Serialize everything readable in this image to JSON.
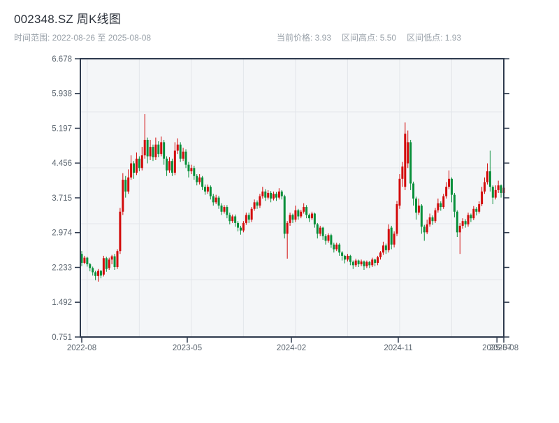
{
  "header": {
    "title": "002348.SZ 周K线图",
    "subtitle": "时间范围: 2022-08-26 至 2025-08-08",
    "stats": [
      {
        "text": "当前价格: 3.93"
      },
      {
        "text": "区间高点: 5.50"
      },
      {
        "text": "区间低点: 1.93"
      }
    ]
  },
  "chart_data": {
    "type": "candlestick",
    "title": "002348.SZ 周K线图",
    "symbol": "002348.SZ",
    "freq": "weekly",
    "start_date": "2022-08-26",
    "end_date": "2025-08-08",
    "current_price": 3.93,
    "range_high": 5.5,
    "range_low": 1.93,
    "ylim": [
      0.751,
      6.678
    ],
    "grid": true,
    "colors": {
      "up": "#d20a0a",
      "down": "#088f3a",
      "axis": "#2e3a4d",
      "grid": "#e3e6ea",
      "plot_bg": "#f4f6f8",
      "tick_text": "#5c6670"
    },
    "y_ticks": [
      "6.678",
      "5.938",
      "5.197",
      "4.456",
      "3.715",
      "2.974",
      "2.233",
      "1.492",
      "0.751"
    ],
    "x_ticks": [
      {
        "label": "2022-08",
        "index": 0
      },
      {
        "label": "2023-05",
        "index": 38.5
      },
      {
        "label": "2024-02",
        "index": 76.5
      },
      {
        "label": "2024-11",
        "index": 115.5
      },
      {
        "label": "2025-07",
        "index": 151.5
      },
      {
        "label": "2025-08",
        "index": 154
      }
    ],
    "candles": [
      [
        2.52,
        2.58,
        2.26,
        2.33
      ],
      [
        2.33,
        2.48,
        2.3,
        2.44
      ],
      [
        2.44,
        2.46,
        2.25,
        2.3
      ],
      [
        2.3,
        2.33,
        2.15,
        2.22
      ],
      [
        2.22,
        2.25,
        2.06,
        2.13
      ],
      [
        2.13,
        2.16,
        1.96,
        2.05
      ],
      [
        2.05,
        2.2,
        1.93,
        2.16
      ],
      [
        2.16,
        2.18,
        2.0,
        2.06
      ],
      [
        2.08,
        2.48,
        2.04,
        2.43
      ],
      [
        2.43,
        2.46,
        2.14,
        2.2
      ],
      [
        2.22,
        2.44,
        2.18,
        2.4
      ],
      [
        2.4,
        2.5,
        2.3,
        2.47
      ],
      [
        2.47,
        2.52,
        2.18,
        2.24
      ],
      [
        2.24,
        2.62,
        2.2,
        2.58
      ],
      [
        2.58,
        3.5,
        2.52,
        3.42
      ],
      [
        3.42,
        4.24,
        3.35,
        4.1
      ],
      [
        4.1,
        4.18,
        3.72,
        3.85
      ],
      [
        3.85,
        4.32,
        3.8,
        4.15
      ],
      [
        4.15,
        4.62,
        4.1,
        4.45
      ],
      [
        4.45,
        4.5,
        4.12,
        4.25
      ],
      [
        4.25,
        4.68,
        4.2,
        4.55
      ],
      [
        4.55,
        4.6,
        4.28,
        4.35
      ],
      [
        4.35,
        4.8,
        4.3,
        4.62
      ],
      [
        4.62,
        5.5,
        4.55,
        4.95
      ],
      [
        4.95,
        5.0,
        4.45,
        4.6
      ],
      [
        4.6,
        4.95,
        4.52,
        4.8
      ],
      [
        4.8,
        4.85,
        4.5,
        4.58
      ],
      [
        4.58,
        5.0,
        4.52,
        4.85
      ],
      [
        4.85,
        4.92,
        4.58,
        4.65
      ],
      [
        4.65,
        5.02,
        4.6,
        4.9
      ],
      [
        4.9,
        4.95,
        4.42,
        4.55
      ],
      [
        4.55,
        4.6,
        4.18,
        4.3
      ],
      [
        4.3,
        4.58,
        4.25,
        4.5
      ],
      [
        4.5,
        4.55,
        4.18,
        4.25
      ],
      [
        4.25,
        4.9,
        4.2,
        4.72
      ],
      [
        4.72,
        4.98,
        4.65,
        4.85
      ],
      [
        4.85,
        4.9,
        4.48,
        4.55
      ],
      [
        4.55,
        4.78,
        4.5,
        4.7
      ],
      [
        4.7,
        4.75,
        4.35,
        4.42
      ],
      [
        4.42,
        4.48,
        4.15,
        4.28
      ],
      [
        4.28,
        4.42,
        4.22,
        4.35
      ],
      [
        4.35,
        4.4,
        4.1,
        4.18
      ],
      [
        4.18,
        4.22,
        3.98,
        4.05
      ],
      [
        4.05,
        4.22,
        4.0,
        4.15
      ],
      [
        4.15,
        4.18,
        3.88,
        3.95
      ],
      [
        3.95,
        4.0,
        3.78,
        3.85
      ],
      [
        3.85,
        4.0,
        3.8,
        3.95
      ],
      [
        3.95,
        3.98,
        3.68,
        3.75
      ],
      [
        3.75,
        3.8,
        3.55,
        3.62
      ],
      [
        3.62,
        3.78,
        3.58,
        3.72
      ],
      [
        3.72,
        3.76,
        3.48,
        3.55
      ],
      [
        3.55,
        3.6,
        3.35,
        3.42
      ],
      [
        3.42,
        3.56,
        3.38,
        3.52
      ],
      [
        3.52,
        3.56,
        3.28,
        3.35
      ],
      [
        3.35,
        3.4,
        3.15,
        3.22
      ],
      [
        3.22,
        3.36,
        3.18,
        3.32
      ],
      [
        3.32,
        3.36,
        3.1,
        3.18
      ],
      [
        3.18,
        3.22,
        3.0,
        3.08
      ],
      [
        3.08,
        3.12,
        2.93,
        3.02
      ],
      [
        3.02,
        3.22,
        2.98,
        3.18
      ],
      [
        3.18,
        3.4,
        3.14,
        3.35
      ],
      [
        3.35,
        3.4,
        3.18,
        3.25
      ],
      [
        3.25,
        3.52,
        3.2,
        3.48
      ],
      [
        3.48,
        3.68,
        3.44,
        3.62
      ],
      [
        3.62,
        3.66,
        3.48,
        3.55
      ],
      [
        3.55,
        3.8,
        3.5,
        3.75
      ],
      [
        3.75,
        3.95,
        3.7,
        3.85
      ],
      [
        3.85,
        3.9,
        3.65,
        3.72
      ],
      [
        3.72,
        3.88,
        3.68,
        3.82
      ],
      [
        3.82,
        3.86,
        3.62,
        3.7
      ],
      [
        3.7,
        3.85,
        3.66,
        3.8
      ],
      [
        3.8,
        3.84,
        3.65,
        3.72
      ],
      [
        3.72,
        3.92,
        3.68,
        3.85
      ],
      [
        3.85,
        3.88,
        3.68,
        3.75
      ],
      [
        3.75,
        3.78,
        2.85,
        2.95
      ],
      [
        2.95,
        3.22,
        2.42,
        3.18
      ],
      [
        3.18,
        3.4,
        3.12,
        3.35
      ],
      [
        3.35,
        3.38,
        3.18,
        3.25
      ],
      [
        3.25,
        3.55,
        3.2,
        3.45
      ],
      [
        3.45,
        3.48,
        3.25,
        3.32
      ],
      [
        3.32,
        3.46,
        3.28,
        3.42
      ],
      [
        3.42,
        3.6,
        3.38,
        3.52
      ],
      [
        3.52,
        3.56,
        3.28,
        3.35
      ],
      [
        3.35,
        3.38,
        3.2,
        3.28
      ],
      [
        3.28,
        3.42,
        3.24,
        3.38
      ],
      [
        3.38,
        3.4,
        3.08,
        3.15
      ],
      [
        3.15,
        3.18,
        2.85,
        2.95
      ],
      [
        2.95,
        3.12,
        2.9,
        3.08
      ],
      [
        3.08,
        3.1,
        2.82,
        2.9
      ],
      [
        2.9,
        2.94,
        2.72,
        2.8
      ],
      [
        2.8,
        2.96,
        2.76,
        2.92
      ],
      [
        2.92,
        2.95,
        2.65,
        2.72
      ],
      [
        2.72,
        2.76,
        2.55,
        2.62
      ],
      [
        2.62,
        2.76,
        2.58,
        2.72
      ],
      [
        2.72,
        2.75,
        2.48,
        2.55
      ],
      [
        2.55,
        2.58,
        2.38,
        2.48
      ],
      [
        2.48,
        2.5,
        2.32,
        2.4
      ],
      [
        2.4,
        2.52,
        2.36,
        2.48
      ],
      [
        2.48,
        2.5,
        2.28,
        2.35
      ],
      [
        2.35,
        2.38,
        2.2,
        2.28
      ],
      [
        2.28,
        2.42,
        2.24,
        2.38
      ],
      [
        2.38,
        2.4,
        2.24,
        2.3
      ],
      [
        2.3,
        2.4,
        2.26,
        2.36
      ],
      [
        2.36,
        2.38,
        2.18,
        2.26
      ],
      [
        2.26,
        2.38,
        2.22,
        2.35
      ],
      [
        2.35,
        2.37,
        2.22,
        2.28
      ],
      [
        2.28,
        2.44,
        2.24,
        2.4
      ],
      [
        2.4,
        2.42,
        2.26,
        2.33
      ],
      [
        2.33,
        2.48,
        2.28,
        2.45
      ],
      [
        2.45,
        2.58,
        2.4,
        2.55
      ],
      [
        2.55,
        2.78,
        2.5,
        2.7
      ],
      [
        2.7,
        2.74,
        2.52,
        2.6
      ],
      [
        2.6,
        3.15,
        2.55,
        3.05
      ],
      [
        3.08,
        3.12,
        2.62,
        2.72
      ],
      [
        2.72,
        3.0,
        2.66,
        2.95
      ],
      [
        2.95,
        3.65,
        2.9,
        3.58
      ],
      [
        3.55,
        4.22,
        3.48,
        4.12
      ],
      [
        4.12,
        4.48,
        3.95,
        4.38
      ],
      [
        3.95,
        5.32,
        3.88,
        5.08
      ],
      [
        4.45,
        5.15,
        4.35,
        4.9
      ],
      [
        4.9,
        4.95,
        3.88,
        4.02
      ],
      [
        4.02,
        4.06,
        3.55,
        3.7
      ],
      [
        3.7,
        3.74,
        3.25,
        3.4
      ],
      [
        3.4,
        3.7,
        3.35,
        3.55
      ],
      [
        3.55,
        3.58,
        2.95,
        3.1
      ],
      [
        3.1,
        3.14,
        2.8,
        2.98
      ],
      [
        2.98,
        3.25,
        2.94,
        3.15
      ],
      [
        3.15,
        3.38,
        3.1,
        3.3
      ],
      [
        3.3,
        3.34,
        3.14,
        3.22
      ],
      [
        3.22,
        3.5,
        3.18,
        3.45
      ],
      [
        3.45,
        3.7,
        3.4,
        3.6
      ],
      [
        3.6,
        3.64,
        3.44,
        3.52
      ],
      [
        3.52,
        3.8,
        3.48,
        3.75
      ],
      [
        3.75,
        4.05,
        3.7,
        3.95
      ],
      [
        3.95,
        4.3,
        3.9,
        4.12
      ],
      [
        4.12,
        4.15,
        3.62,
        3.78
      ],
      [
        3.78,
        3.82,
        3.3,
        3.42
      ],
      [
        3.42,
        3.45,
        2.88,
        2.98
      ],
      [
        2.98,
        3.18,
        2.52,
        3.12
      ],
      [
        3.12,
        3.28,
        3.06,
        3.22
      ],
      [
        3.22,
        3.26,
        3.08,
        3.15
      ],
      [
        3.15,
        3.4,
        3.1,
        3.35
      ],
      [
        3.35,
        3.38,
        3.2,
        3.28
      ],
      [
        3.28,
        3.54,
        3.24,
        3.48
      ],
      [
        3.48,
        3.52,
        3.34,
        3.42
      ],
      [
        3.42,
        3.64,
        3.38,
        3.58
      ],
      [
        3.58,
        3.95,
        3.54,
        3.85
      ],
      [
        3.85,
        4.15,
        3.8,
        4.05
      ],
      [
        4.05,
        4.45,
        4.0,
        4.28
      ],
      [
        4.28,
        4.72,
        3.85,
        3.95
      ],
      [
        3.95,
        3.98,
        3.58,
        3.72
      ],
      [
        3.72,
        3.98,
        3.68,
        3.88
      ],
      [
        3.88,
        4.08,
        3.82,
        3.98
      ],
      [
        3.98,
        4.0,
        3.72,
        3.82
      ],
      [
        3.82,
        4.02,
        3.75,
        3.93
      ]
    ]
  }
}
